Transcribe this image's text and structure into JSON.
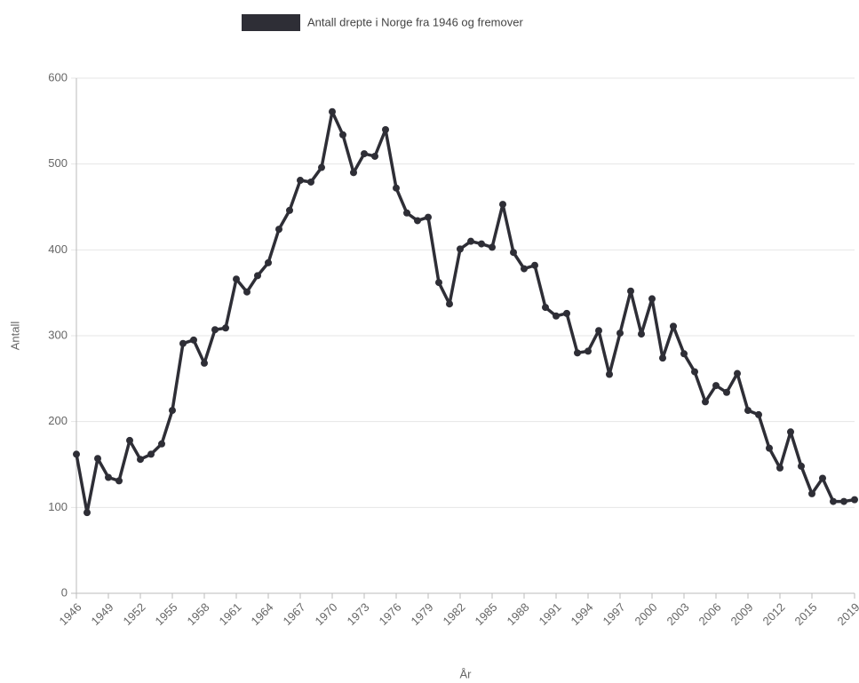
{
  "chart_data": {
    "type": "line",
    "xlabel": "År",
    "ylabel": "Antall",
    "x": [
      1946,
      1947,
      1948,
      1949,
      1950,
      1951,
      1952,
      1953,
      1954,
      1955,
      1956,
      1957,
      1958,
      1959,
      1960,
      1961,
      1962,
      1963,
      1964,
      1965,
      1966,
      1967,
      1968,
      1969,
      1970,
      1971,
      1972,
      1973,
      1974,
      1975,
      1976,
      1977,
      1978,
      1979,
      1980,
      1981,
      1982,
      1983,
      1984,
      1985,
      1986,
      1987,
      1988,
      1989,
      1990,
      1991,
      1992,
      1993,
      1994,
      1995,
      1996,
      1997,
      1998,
      1999,
      2000,
      2001,
      2002,
      2003,
      2004,
      2005,
      2006,
      2007,
      2008,
      2009,
      2010,
      2011,
      2012,
      2013,
      2014,
      2015,
      2016,
      2017,
      2018,
      2019
    ],
    "series": [
      {
        "name": "Antall drepte i Norge fra 1946 og fremover",
        "color": "#2e2e36",
        "values": [
          162,
          94,
          157,
          135,
          131,
          178,
          156,
          162,
          174,
          213,
          291,
          295,
          268,
          307,
          309,
          366,
          351,
          370,
          385,
          424,
          446,
          481,
          479,
          496,
          561,
          534,
          490,
          512,
          509,
          540,
          472,
          443,
          434,
          438,
          362,
          337,
          401,
          410,
          407,
          403,
          453,
          397,
          378,
          382,
          333,
          323,
          326,
          280,
          282,
          306,
          255,
          303,
          352,
          302,
          343,
          274,
          311,
          279,
          258,
          223,
          242,
          234,
          256,
          213,
          208,
          169,
          146,
          188,
          148,
          116,
          134,
          107,
          107,
          109
        ]
      }
    ],
    "xlim": [
      1946,
      2019
    ],
    "xticks": [
      1946,
      1949,
      1952,
      1955,
      1958,
      1961,
      1964,
      1967,
      1970,
      1973,
      1976,
      1979,
      1982,
      1985,
      1988,
      1991,
      1994,
      1997,
      2000,
      2003,
      2006,
      2009,
      2012,
      2015,
      2019
    ],
    "ylim": [
      0,
      600
    ],
    "yticks": [
      0,
      100,
      200,
      300,
      400,
      500,
      600
    ],
    "grid": true,
    "legend": "top"
  }
}
